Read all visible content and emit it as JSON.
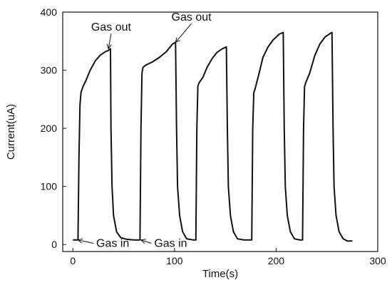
{
  "chart_data": {
    "type": "line",
    "title": "",
    "xlabel": "Time(s)",
    "ylabel": "Current(uA)",
    "xlim": [
      -10,
      300
    ],
    "ylim": [
      -12,
      400
    ],
    "xticks": [
      0,
      100,
      200,
      300
    ],
    "yticks": [
      0,
      100,
      200,
      300,
      400
    ],
    "grid": false,
    "legend": "none",
    "colors": {
      "line": "#111111",
      "accent": "#9b1c2c"
    },
    "series": [
      {
        "name": "",
        "points": [
          [
            0,
            8
          ],
          [
            5,
            8
          ],
          [
            6,
            150
          ],
          [
            7,
            240
          ],
          [
            8,
            262
          ],
          [
            10,
            272
          ],
          [
            13,
            283
          ],
          [
            17,
            300
          ],
          [
            22,
            316
          ],
          [
            27,
            326
          ],
          [
            32,
            332
          ],
          [
            35,
            334
          ],
          [
            37,
            337
          ],
          [
            37.5,
            200
          ],
          [
            38.5,
            100
          ],
          [
            40,
            50
          ],
          [
            43,
            22
          ],
          [
            47,
            12
          ],
          [
            53,
            9
          ],
          [
            60,
            8
          ],
          [
            66,
            8
          ],
          [
            67,
            200
          ],
          [
            68,
            295
          ],
          [
            69,
            305
          ],
          [
            72,
            309
          ],
          [
            78,
            314
          ],
          [
            85,
            322
          ],
          [
            92,
            332
          ],
          [
            98,
            345
          ],
          [
            101,
            348
          ],
          [
            102,
            200
          ],
          [
            103,
            100
          ],
          [
            105,
            50
          ],
          [
            108,
            22
          ],
          [
            112,
            10
          ],
          [
            118,
            8
          ],
          [
            121,
            8
          ],
          [
            122,
            200
          ],
          [
            123,
            272
          ],
          [
            124,
            278
          ],
          [
            128,
            288
          ],
          [
            132,
            305
          ],
          [
            137,
            320
          ],
          [
            142,
            331
          ],
          [
            147,
            337
          ],
          [
            151,
            340
          ],
          [
            152,
            200
          ],
          [
            153,
            100
          ],
          [
            155,
            50
          ],
          [
            158,
            22
          ],
          [
            162,
            10
          ],
          [
            168,
            8
          ],
          [
            176,
            8
          ],
          [
            177,
            200
          ],
          [
            178,
            262
          ],
          [
            179,
            266
          ],
          [
            183,
            293
          ],
          [
            187,
            322
          ],
          [
            192,
            340
          ],
          [
            197,
            352
          ],
          [
            203,
            362
          ],
          [
            207,
            365
          ],
          [
            208,
            200
          ],
          [
            209,
            100
          ],
          [
            211,
            50
          ],
          [
            214,
            22
          ],
          [
            218,
            10
          ],
          [
            223,
            8
          ],
          [
            226,
            8
          ],
          [
            227,
            200
          ],
          [
            228,
            272
          ],
          [
            229,
            278
          ],
          [
            233,
            295
          ],
          [
            238,
            325
          ],
          [
            243,
            345
          ],
          [
            248,
            357
          ],
          [
            253,
            363
          ],
          [
            255,
            365
          ],
          [
            256,
            200
          ],
          [
            257,
            100
          ],
          [
            259,
            50
          ],
          [
            262,
            22
          ],
          [
            266,
            10
          ],
          [
            270,
            6
          ],
          [
            275,
            6
          ]
        ]
      }
    ],
    "annotations": [
      {
        "text": "Gas out",
        "x": 18,
        "y": 368,
        "target_x": 35,
        "target_y": 337
      },
      {
        "text": "Gas out",
        "x": 97,
        "y": 385,
        "target_x": 101,
        "target_y": 348
      },
      {
        "text": "Gas in",
        "x": 23,
        "y": -4,
        "target_x": 5,
        "target_y": 8
      },
      {
        "text": "Gas in",
        "x": 80,
        "y": -4,
        "target_x": 67,
        "target_y": 8
      }
    ]
  }
}
